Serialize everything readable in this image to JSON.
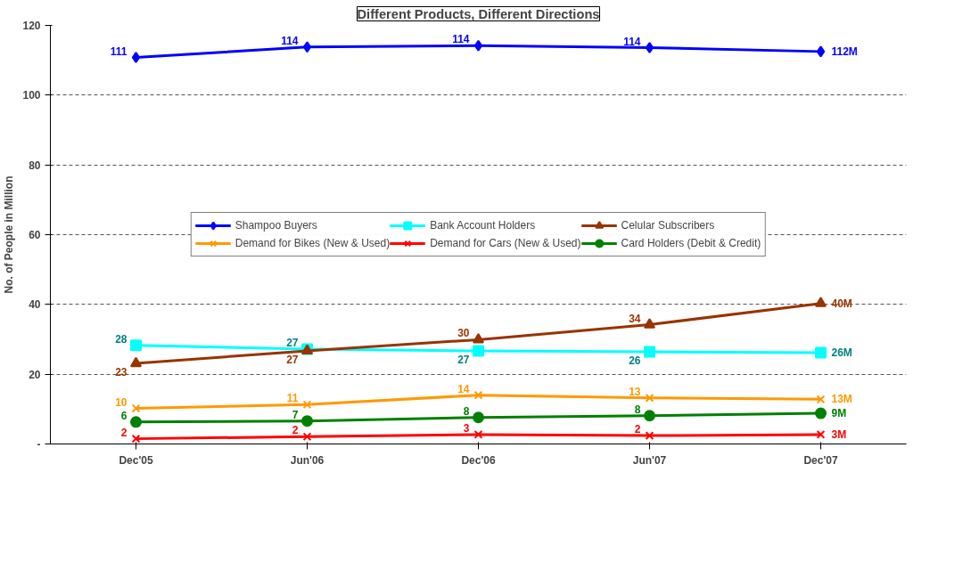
{
  "chart_data": {
    "type": "line",
    "title": "Different Products, Different Directions",
    "ylabel": "No. of People in Million",
    "categories": [
      "Dec'05",
      "Jun'06",
      "Dec'06",
      "Jun'07",
      "Dec'07"
    ],
    "ylim": [
      0,
      120
    ],
    "yticks": [
      {
        "value": 0,
        "label": "-"
      },
      20,
      40,
      60,
      80,
      100,
      120
    ],
    "grid": "y",
    "legend": "bottom",
    "series": [
      {
        "name": "Shampoo Buyers",
        "color": "#0000ff",
        "marker": "diamond",
        "values": [
          110.8,
          113.8,
          114.2,
          113.6,
          112.5
        ],
        "value_labels": [
          "111",
          "114",
          "114",
          "114",
          "112M"
        ]
      },
      {
        "name": "Bank Account Holders",
        "color": "#00ffff",
        "marker": "square",
        "values": [
          28.3,
          27.2,
          26.7,
          26.4,
          26.2
        ],
        "value_labels": [
          "28",
          "27",
          "27",
          "26",
          "26M"
        ]
      },
      {
        "name": "Celular Subscribers",
        "color": "#993300",
        "marker": "triangle",
        "values": [
          23.1,
          26.7,
          29.9,
          34.2,
          40.3
        ],
        "value_labels": [
          "23",
          "27",
          "30",
          "34",
          "40M"
        ]
      },
      {
        "name": "Demand for Bikes (New & Used)",
        "color": "#ff9900",
        "marker": "cross",
        "values": [
          10.2,
          11.3,
          14.0,
          13.2,
          12.8
        ],
        "value_labels": [
          "10",
          "11",
          "14",
          "13",
          "13M"
        ]
      },
      {
        "name": "Demand for Cars (New & Used)",
        "color": "#ff0000",
        "marker": "cross",
        "values": [
          1.5,
          2.1,
          2.7,
          2.4,
          2.7
        ],
        "value_labels": [
          "2",
          "2",
          "3",
          "2",
          "3M"
        ]
      },
      {
        "name": "Card Holders (Debit & Credit)",
        "color": "#008000",
        "marker": "circle",
        "values": [
          6.3,
          6.6,
          7.6,
          8.1,
          8.8
        ],
        "value_labels": [
          "6",
          "7",
          "8",
          "8",
          "9M"
        ]
      }
    ]
  }
}
